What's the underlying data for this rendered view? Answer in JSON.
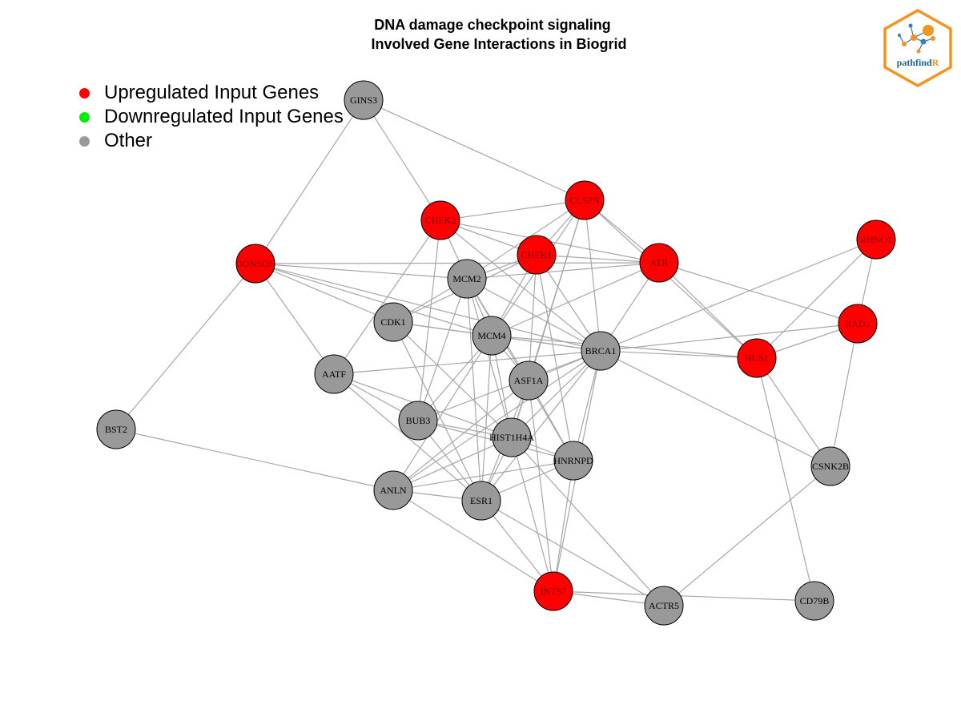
{
  "title": {
    "line1": "DNA damage checkpoint signaling",
    "line2": "Involved Gene Interactions in Biogrid"
  },
  "legend": [
    {
      "label": "Upregulated Input Genes",
      "color": "#ff0000"
    },
    {
      "label": "Downregulated Input Genes",
      "color": "#00ee00"
    },
    {
      "label": "Other",
      "color": "#999999"
    }
  ],
  "logo": {
    "text_main": "pathfind",
    "text_accent": "R",
    "border_color": "#f39322",
    "text_color": "#1f5f8b"
  },
  "colors": {
    "up": "#ff0000",
    "other": "#999999",
    "edge": "#a6a6a6"
  },
  "network": {
    "nodes": [
      {
        "id": "GINS3",
        "status": "other"
      },
      {
        "id": "CHEK2",
        "status": "up"
      },
      {
        "id": "CLSPN",
        "status": "up"
      },
      {
        "id": "RHNO1",
        "status": "up"
      },
      {
        "id": "DONSON",
        "status": "up"
      },
      {
        "id": "CHEK1",
        "status": "up"
      },
      {
        "id": "ATR",
        "status": "up"
      },
      {
        "id": "MCM2",
        "status": "other"
      },
      {
        "id": "RAD1",
        "status": "up"
      },
      {
        "id": "CDK1",
        "status": "other"
      },
      {
        "id": "MCM4",
        "status": "other"
      },
      {
        "id": "BRCA1",
        "status": "other"
      },
      {
        "id": "HUS1",
        "status": "up"
      },
      {
        "id": "AATF",
        "status": "other"
      },
      {
        "id": "ASF1A",
        "status": "other"
      },
      {
        "id": "BST2",
        "status": "other"
      },
      {
        "id": "BUB3",
        "status": "other"
      },
      {
        "id": "HIST1H4A",
        "status": "other"
      },
      {
        "id": "HNRNPD",
        "status": "other"
      },
      {
        "id": "CSNK2B",
        "status": "other"
      },
      {
        "id": "ANLN",
        "status": "other"
      },
      {
        "id": "ESR1",
        "status": "other"
      },
      {
        "id": "INTS7",
        "status": "up"
      },
      {
        "id": "ACTR5",
        "status": "other"
      },
      {
        "id": "CD79B",
        "status": "other"
      }
    ],
    "edges": [
      [
        "GINS3",
        "CLSPN"
      ],
      [
        "GINS3",
        "CHEK2"
      ],
      [
        "GINS3",
        "DONSON"
      ],
      [
        "DONSON",
        "MCM2"
      ],
      [
        "DONSON",
        "CDK1"
      ],
      [
        "DONSON",
        "MCM4"
      ],
      [
        "DONSON",
        "BRCA1"
      ],
      [
        "DONSON",
        "AATF"
      ],
      [
        "DONSON",
        "BST2"
      ],
      [
        "DONSON",
        "ATR"
      ],
      [
        "BST2",
        "ANLN"
      ],
      [
        "CHEK2",
        "CHEK1"
      ],
      [
        "CHEK2",
        "ATR"
      ],
      [
        "CHEK2",
        "BRCA1"
      ],
      [
        "CHEK2",
        "CLSPN"
      ],
      [
        "CHEK2",
        "BUB3"
      ],
      [
        "CHEK2",
        "AATF"
      ],
      [
        "CHEK2",
        "MCM2"
      ],
      [
        "CLSPN",
        "ATR"
      ],
      [
        "CLSPN",
        "CHEK1"
      ],
      [
        "CLSPN",
        "MCM2"
      ],
      [
        "CLSPN",
        "BRCA1"
      ],
      [
        "CLSPN",
        "MCM4"
      ],
      [
        "CLSPN",
        "ASF1A"
      ],
      [
        "CLSPN",
        "HUS1"
      ],
      [
        "CLSPN",
        "HIST1H4A"
      ],
      [
        "CHEK1",
        "ATR"
      ],
      [
        "CHEK1",
        "MCM2"
      ],
      [
        "CHEK1",
        "CDK1"
      ],
      [
        "CHEK1",
        "BRCA1"
      ],
      [
        "CHEK1",
        "MCM4"
      ],
      [
        "CHEK1",
        "HNRNPD"
      ],
      [
        "CHEK1",
        "ASF1A"
      ],
      [
        "ATR",
        "MCM2"
      ],
      [
        "ATR",
        "BRCA1"
      ],
      [
        "ATR",
        "HUS1"
      ],
      [
        "ATR",
        "RAD1"
      ],
      [
        "ATR",
        "MCM4"
      ],
      [
        "RHNO1",
        "RAD1"
      ],
      [
        "RHNO1",
        "HUS1"
      ],
      [
        "RHNO1",
        "BRCA1"
      ],
      [
        "RAD1",
        "HUS1"
      ],
      [
        "RAD1",
        "BRCA1"
      ],
      [
        "RAD1",
        "CSNK2B"
      ],
      [
        "HUS1",
        "BRCA1"
      ],
      [
        "HUS1",
        "CSNK2B"
      ],
      [
        "HUS1",
        "CD79B"
      ],
      [
        "HUS1",
        "MCM4"
      ],
      [
        "MCM2",
        "CDK1"
      ],
      [
        "MCM2",
        "MCM4"
      ],
      [
        "MCM2",
        "BRCA1"
      ],
      [
        "MCM2",
        "ASF1A"
      ],
      [
        "MCM2",
        "HIST1H4A"
      ],
      [
        "MCM2",
        "HNRNPD"
      ],
      [
        "MCM2",
        "ESR1"
      ],
      [
        "MCM2",
        "BUB3"
      ],
      [
        "CDK1",
        "MCM4"
      ],
      [
        "CDK1",
        "BRCA1"
      ],
      [
        "CDK1",
        "ESR1"
      ],
      [
        "CDK1",
        "HIST1H4A"
      ],
      [
        "MCM4",
        "BRCA1"
      ],
      [
        "MCM4",
        "ASF1A"
      ],
      [
        "MCM4",
        "HIST1H4A"
      ],
      [
        "MCM4",
        "ANLN"
      ],
      [
        "MCM4",
        "ESR1"
      ],
      [
        "MCM4",
        "BUB3"
      ],
      [
        "BRCA1",
        "AATF"
      ],
      [
        "BRCA1",
        "ASF1A"
      ],
      [
        "BRCA1",
        "HIST1H4A"
      ],
      [
        "BRCA1",
        "HNRNPD"
      ],
      [
        "BRCA1",
        "ESR1"
      ],
      [
        "BRCA1",
        "ANLN"
      ],
      [
        "BRCA1",
        "BUB3"
      ],
      [
        "BRCA1",
        "CSNK2B"
      ],
      [
        "BRCA1",
        "INTS7"
      ],
      [
        "AATF",
        "BUB3"
      ],
      [
        "AATF",
        "HIST1H4A"
      ],
      [
        "AATF",
        "ESR1"
      ],
      [
        "ASF1A",
        "HIST1H4A"
      ],
      [
        "ASF1A",
        "HNRNPD"
      ],
      [
        "ASF1A",
        "ESR1"
      ],
      [
        "ASF1A",
        "ANLN"
      ],
      [
        "ASF1A",
        "INTS7"
      ],
      [
        "BUB3",
        "HIST1H4A"
      ],
      [
        "BUB3",
        "ESR1"
      ],
      [
        "BUB3",
        "HNRNPD"
      ],
      [
        "HIST1H4A",
        "HNRNPD"
      ],
      [
        "HIST1H4A",
        "ESR1"
      ],
      [
        "HIST1H4A",
        "ANLN"
      ],
      [
        "HIST1H4A",
        "INTS7"
      ],
      [
        "HIST1H4A",
        "ACTR5"
      ],
      [
        "HNRNPD",
        "ANLN"
      ],
      [
        "HNRNPD",
        "ESR1"
      ],
      [
        "HNRNPD",
        "INTS7"
      ],
      [
        "ANLN",
        "ESR1"
      ],
      [
        "ANLN",
        "INTS7"
      ],
      [
        "ESR1",
        "INTS7"
      ],
      [
        "ESR1",
        "ACTR5"
      ],
      [
        "INTS7",
        "ACTR5"
      ],
      [
        "INTS7",
        "CD79B"
      ],
      [
        "ACTR5",
        "CSNK2B"
      ]
    ]
  }
}
